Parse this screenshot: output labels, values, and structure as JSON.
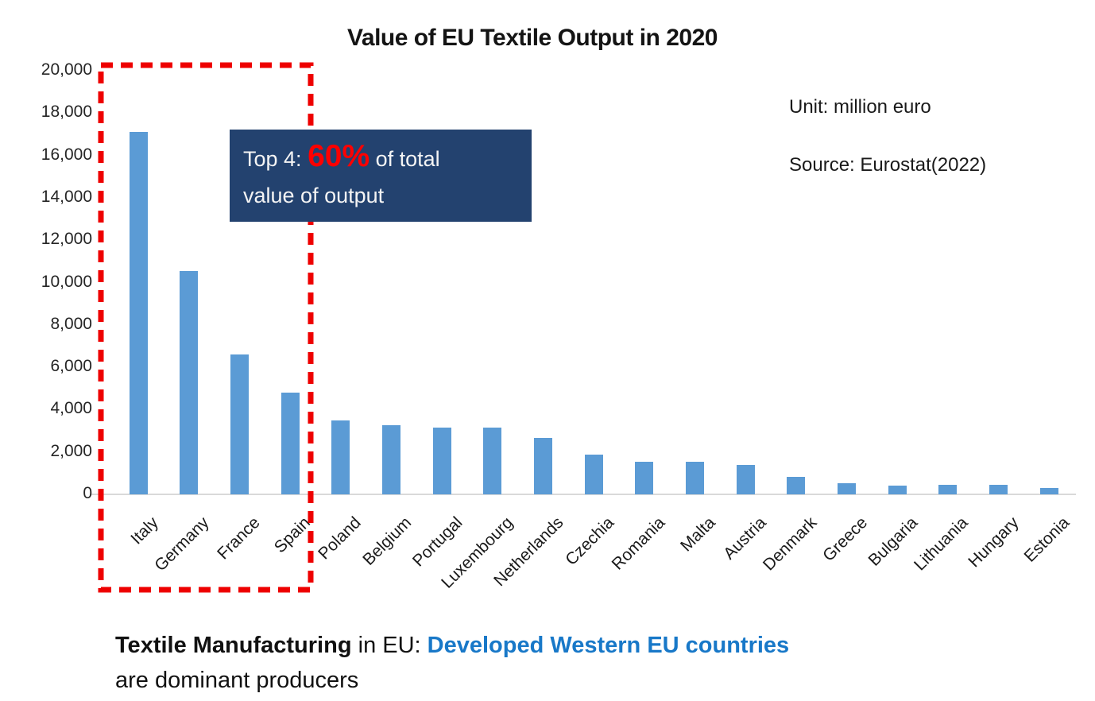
{
  "title": "Value of EU Textile Output in 2020",
  "meta": {
    "unit": "Unit: million euro",
    "source": "Source: Eurostat(2022)"
  },
  "annotation": {
    "prefix": "Top 4: ",
    "highlight": "60%",
    "suffix": " of total",
    "line2": "value of output",
    "box_color": "#23426F",
    "highlight_color": "#ff0000"
  },
  "highlight_box": {
    "label": "top-4-countries",
    "color": "#ee0000",
    "style": "dashed"
  },
  "caption": {
    "bold": "Textile Manufacturing",
    "middle": " in EU: ",
    "blue": "Developed Western EU countries",
    "line2": "are dominant producers",
    "blue_color": "#1878C8"
  },
  "chart_data": {
    "type": "bar",
    "title": "Value of EU Textile Output in 2020",
    "xlabel": "",
    "ylabel": "million euro",
    "categories": [
      "Italy",
      "Germany",
      "France",
      "Spain",
      "Poland",
      "Belgium",
      "Portugal",
      "Luxembourg",
      "Netherlands",
      "Czechia",
      "Romania",
      "Malta",
      "Austria",
      "Denmark",
      "Greece",
      "Bulgaria",
      "Lithuania",
      "Hungary",
      "Estonia"
    ],
    "values": [
      17100,
      10550,
      6600,
      4800,
      3500,
      3250,
      3150,
      3150,
      2650,
      1870,
      1520,
      1540,
      1380,
      830,
      540,
      430,
      440,
      440,
      300
    ],
    "ylim": [
      0,
      20000
    ],
    "ytick_step": 2000,
    "ytick_labels": [
      "0",
      "2,000",
      "4,000",
      "6,000",
      "8,000",
      "10,000",
      "12,000",
      "14,000",
      "16,000",
      "18,000",
      "20,000"
    ],
    "bar_color": "#5B9BD5",
    "grid": false,
    "legend": false,
    "highlighted_categories": [
      "Italy",
      "Germany",
      "France",
      "Spain"
    ]
  }
}
